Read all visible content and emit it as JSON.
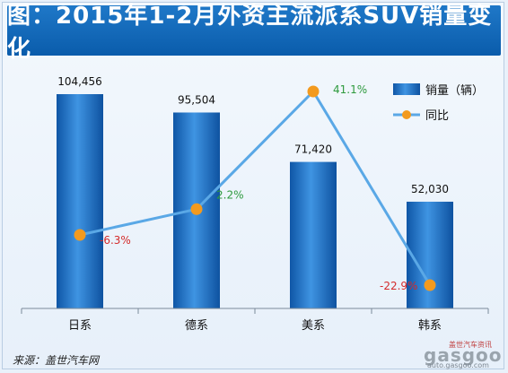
{
  "title": "图：2015年1-2月外资主流派系SUV销量变化",
  "source": "来源：盖世汽车网",
  "watermark": {
    "tagline": "盖世汽车资讯",
    "logo": "gasgoo",
    "url": "auto.gasgoo.com"
  },
  "colors": {
    "bar": "#1a6fc4",
    "line": "#5aa8e6",
    "point": "#f39a1e",
    "positive_label": "#2e9a3e",
    "negative_label": "#d42b2b"
  },
  "chart_data": {
    "type": "bar",
    "categories": [
      "日系",
      "德系",
      "美系",
      "韩系"
    ],
    "series": [
      {
        "name": "销量（辆）",
        "type": "bar",
        "values": [
          104456,
          95504,
          71420,
          52030
        ],
        "labels": [
          "104,456",
          "95,504",
          "71,420",
          "52,030"
        ]
      },
      {
        "name": "同比",
        "type": "line",
        "values": [
          -6.3,
          2.2,
          41.1,
          -22.9
        ],
        "labels": [
          "-6.3%",
          "2.2%",
          "41.1%",
          "-22.9%"
        ]
      }
    ],
    "legend_position": "top-right",
    "grid": false
  }
}
